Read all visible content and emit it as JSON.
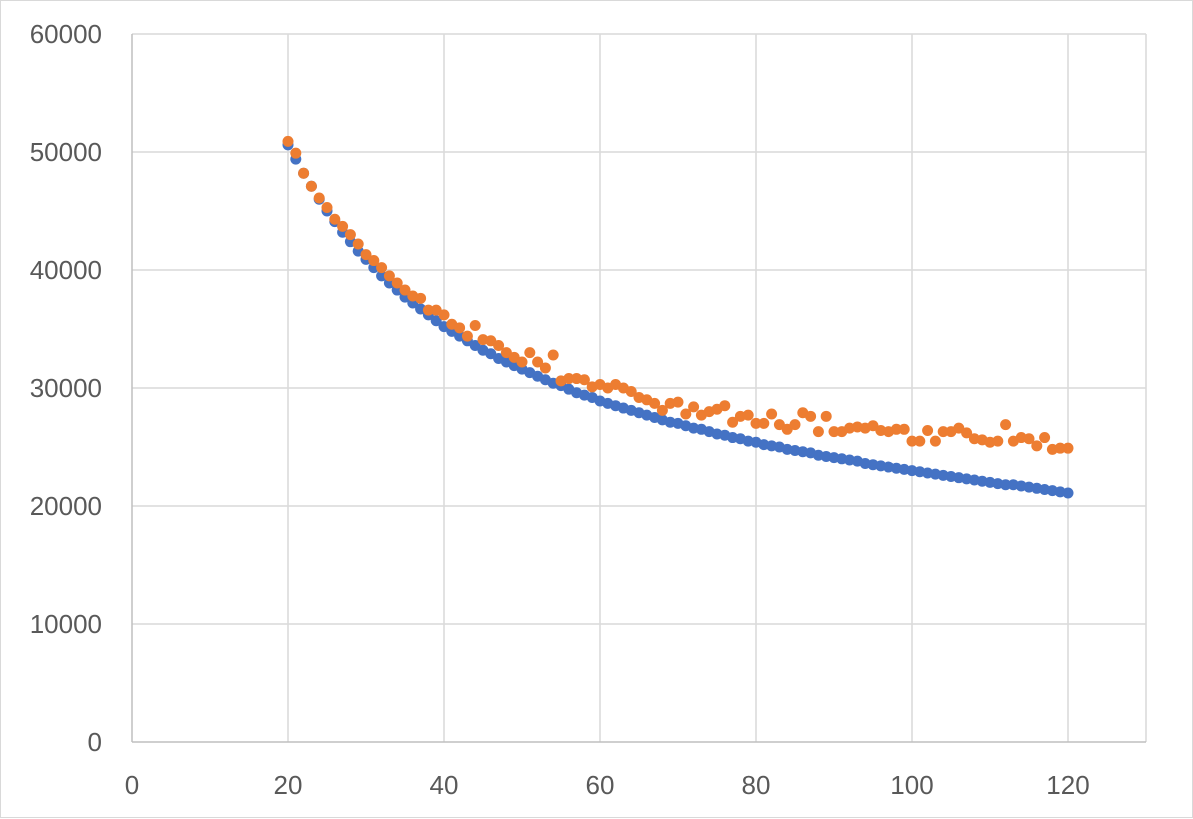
{
  "chart_data": {
    "type": "scatter",
    "title": "",
    "xlabel": "",
    "ylabel": "",
    "xlim": [
      0,
      130
    ],
    "ylim": [
      0,
      60000
    ],
    "x_ticks": [
      0,
      20,
      40,
      60,
      80,
      100,
      120
    ],
    "y_ticks": [
      0,
      10000,
      20000,
      30000,
      40000,
      50000,
      60000
    ],
    "x_tick_labels": [
      "0",
      "20",
      "40",
      "60",
      "80",
      "100",
      "120"
    ],
    "y_tick_labels": [
      "0",
      "10000",
      "20000",
      "30000",
      "40000",
      "50000",
      "60000"
    ],
    "grid": true,
    "legend": "none",
    "colors": {
      "grid": "#d9d9d9",
      "axis": "#bfbfbf",
      "tick_text": "#595959"
    },
    "series": [
      {
        "color": "#4472c4",
        "x": [
          20,
          21,
          22,
          23,
          24,
          25,
          26,
          27,
          28,
          29,
          30,
          31,
          32,
          33,
          34,
          35,
          36,
          37,
          38,
          39,
          40,
          41,
          42,
          43,
          44,
          45,
          46,
          47,
          48,
          49,
          50,
          51,
          52,
          53,
          54,
          55,
          56,
          57,
          58,
          59,
          60,
          61,
          62,
          63,
          64,
          65,
          66,
          67,
          68,
          69,
          70,
          71,
          72,
          73,
          74,
          75,
          76,
          77,
          78,
          79,
          80,
          81,
          82,
          83,
          84,
          85,
          86,
          87,
          88,
          89,
          90,
          91,
          92,
          93,
          94,
          95,
          96,
          97,
          98,
          99,
          100,
          101,
          102,
          103,
          104,
          105,
          106,
          107,
          108,
          109,
          110,
          111,
          112,
          113,
          114,
          115,
          116,
          117,
          118,
          119,
          120
        ],
        "y": [
          50600,
          49400,
          48200,
          47100,
          46000,
          45000,
          44100,
          43200,
          42400,
          41600,
          40900,
          40200,
          39500,
          38900,
          38300,
          37700,
          37200,
          36700,
          36200,
          35700,
          35200,
          34800,
          34400,
          34000,
          33600,
          33200,
          32900,
          32500,
          32200,
          31900,
          31600,
          31300,
          31000,
          30700,
          30400,
          30200,
          29900,
          29600,
          29400,
          29200,
          28900,
          28700,
          28500,
          28300,
          28100,
          27900,
          27700,
          27500,
          27300,
          27100,
          27000,
          26800,
          26600,
          26500,
          26300,
          26100,
          26000,
          25800,
          25700,
          25500,
          25400,
          25200,
          25100,
          25000,
          24800,
          24700,
          24600,
          24500,
          24300,
          24200,
          24100,
          24000,
          23900,
          23800,
          23600,
          23500,
          23400,
          23300,
          23200,
          23100,
          23000,
          22900,
          22800,
          22700,
          22600,
          22500,
          22400,
          22300,
          22200,
          22100,
          22000,
          21900,
          21800,
          21800,
          21700,
          21600,
          21500,
          21400,
          21300,
          21200,
          21100
        ]
      },
      {
        "color": "#ed7d31",
        "x": [
          20,
          21,
          22,
          23,
          24,
          25,
          26,
          27,
          28,
          29,
          30,
          31,
          32,
          33,
          34,
          35,
          36,
          37,
          38,
          39,
          40,
          41,
          42,
          43,
          44,
          45,
          46,
          47,
          48,
          49,
          50,
          51,
          52,
          53,
          54,
          55,
          56,
          57,
          58,
          59,
          60,
          61,
          62,
          63,
          64,
          65,
          66,
          67,
          68,
          69,
          70,
          71,
          72,
          73,
          74,
          75,
          76,
          77,
          78,
          79,
          80,
          81,
          82,
          83,
          84,
          85,
          86,
          87,
          88,
          89,
          90,
          91,
          92,
          93,
          94,
          95,
          96,
          97,
          98,
          99,
          100,
          101,
          102,
          103,
          104,
          105,
          106,
          107,
          108,
          109,
          110,
          111,
          112,
          113,
          114,
          115,
          116,
          117,
          118,
          119,
          120
        ],
        "y": [
          50900,
          49900,
          48200,
          47100,
          46100,
          45300,
          44300,
          43700,
          43000,
          42200,
          41300,
          40800,
          40200,
          39500,
          38900,
          38300,
          37800,
          37600,
          36600,
          36600,
          36200,
          35400,
          35100,
          34400,
          35300,
          34100,
          34000,
          33600,
          33000,
          32600,
          32200,
          33000,
          32200,
          31700,
          32800,
          30600,
          30800,
          30800,
          30700,
          30100,
          30300,
          30000,
          30300,
          30000,
          29700,
          29200,
          29000,
          28700,
          28100,
          28700,
          28800,
          27800,
          28400,
          27700,
          28000,
          28200,
          28500,
          27100,
          27600,
          27700,
          27000,
          27000,
          27800,
          26900,
          26500,
          26900,
          27900,
          27600,
          26300,
          27600,
          26300,
          26300,
          26600,
          26700,
          26600,
          26800,
          26400,
          26300,
          26500,
          26500,
          25500,
          25500,
          26400,
          25500,
          26300,
          26300,
          26600,
          26200,
          25700,
          25600,
          25400,
          25500,
          26900,
          25500,
          25800,
          25700,
          25100,
          25800,
          24800,
          24900,
          24900
        ]
      }
    ]
  }
}
